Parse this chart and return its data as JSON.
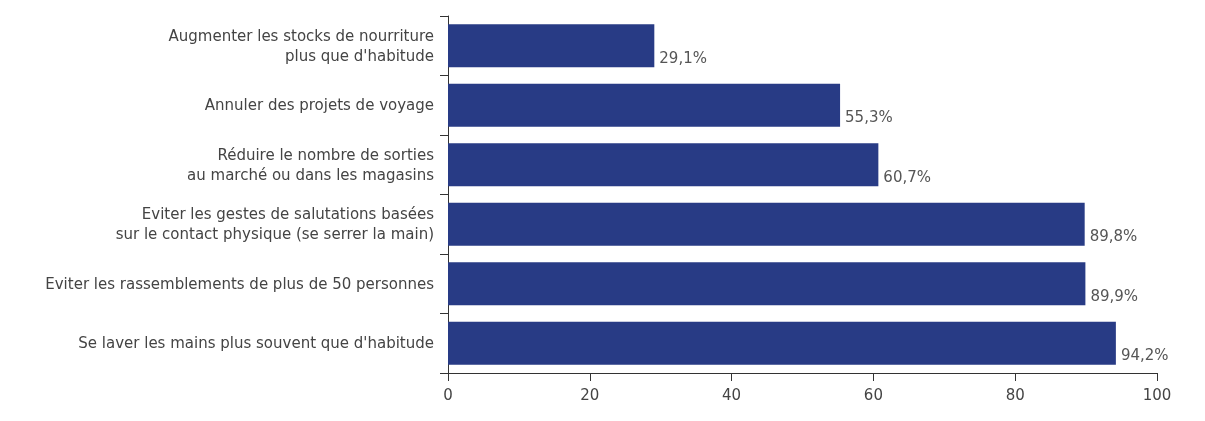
{
  "chart_data": {
    "type": "bar",
    "orientation": "horizontal",
    "categories": [
      "Augmenter les stocks de nourriture\nplus que d'habitude",
      "Annuler des projets de voyage",
      "Réduire le nombre de sorties\nau marché ou dans les magasins",
      "Eviter les gestes de salutations basées\nsur le contact physique (se serrer la main)",
      "Eviter les rassemblements de plus de 50 personnes",
      "Se laver les mains plus souvent que d'habitude"
    ],
    "values": [
      29.1,
      55.3,
      60.7,
      89.8,
      89.9,
      94.2
    ],
    "value_labels": [
      "29,1%",
      "55,3%",
      "60,7%",
      "89,8%",
      "89,9%",
      "94,2%"
    ],
    "color": "#283b85",
    "xlim": [
      0,
      100
    ],
    "xticks": [
      0,
      20,
      40,
      60,
      80,
      100
    ],
    "grid": false
  }
}
